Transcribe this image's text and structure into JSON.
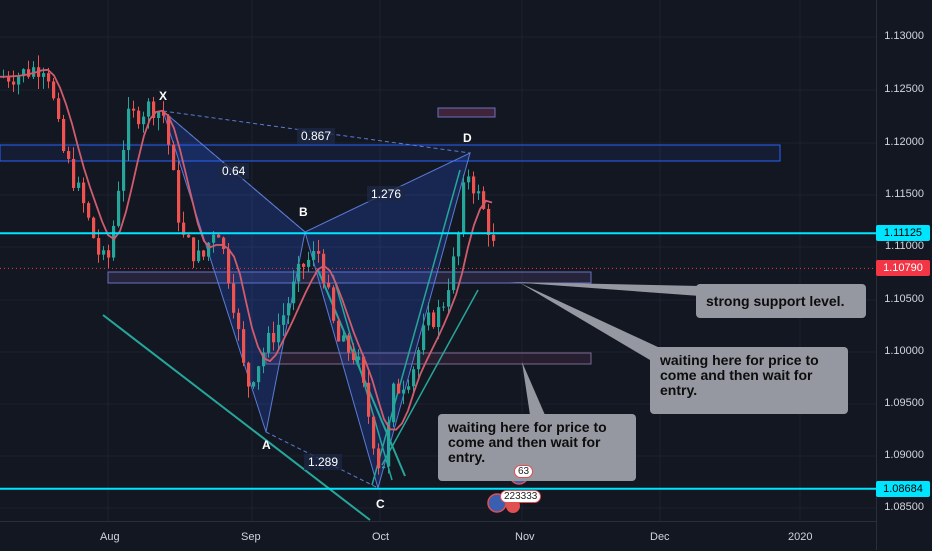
{
  "chart_data": {
    "type": "candlestick",
    "title": "",
    "y_axis": {
      "ticks": [
        "1.13000",
        "1.12500",
        "1.12000",
        "1.11500",
        "1.11000",
        "1.10500",
        "1.10000",
        "1.09500",
        "1.09000",
        "1.08500"
      ],
      "range": [
        1.0835,
        1.1335
      ]
    },
    "x_axis": {
      "ticks": [
        "Aug",
        "Sep",
        "Oct",
        "Nov",
        "Dec",
        "2020"
      ]
    },
    "price_tags": [
      {
        "label": "1.11125",
        "value": 1.11125,
        "color": "#00e5ff",
        "text_color": "#000000"
      },
      {
        "label": "1.10790",
        "value": 1.1079,
        "color": "#f23645",
        "text_color": "#ffffff"
      },
      {
        "label": "1.08684",
        "value": 1.08684,
        "color": "#00e5ff",
        "text_color": "#000000"
      }
    ],
    "harmonic_points": [
      {
        "label": "X",
        "price": 1.123
      },
      {
        "label": "A",
        "price": 1.0922
      },
      {
        "label": "B",
        "price": 1.1112
      },
      {
        "label": "C",
        "price": 1.0868
      },
      {
        "label": "D",
        "price": 1.1188
      }
    ],
    "ratios": [
      "0.867",
      "0.64",
      "1.276",
      "1.289"
    ],
    "moving_average_color": "#d05c6e",
    "up_color": "#26a69a",
    "down_color": "#ef5350"
  },
  "callouts": {
    "support": "strong support level.",
    "wait_right": "waiting here for price to come and then  wait for entry.",
    "wait_left": "waiting here for price to come and then  wait for entry."
  },
  "events": {
    "badge_a": "63",
    "badge_b": "223333"
  }
}
